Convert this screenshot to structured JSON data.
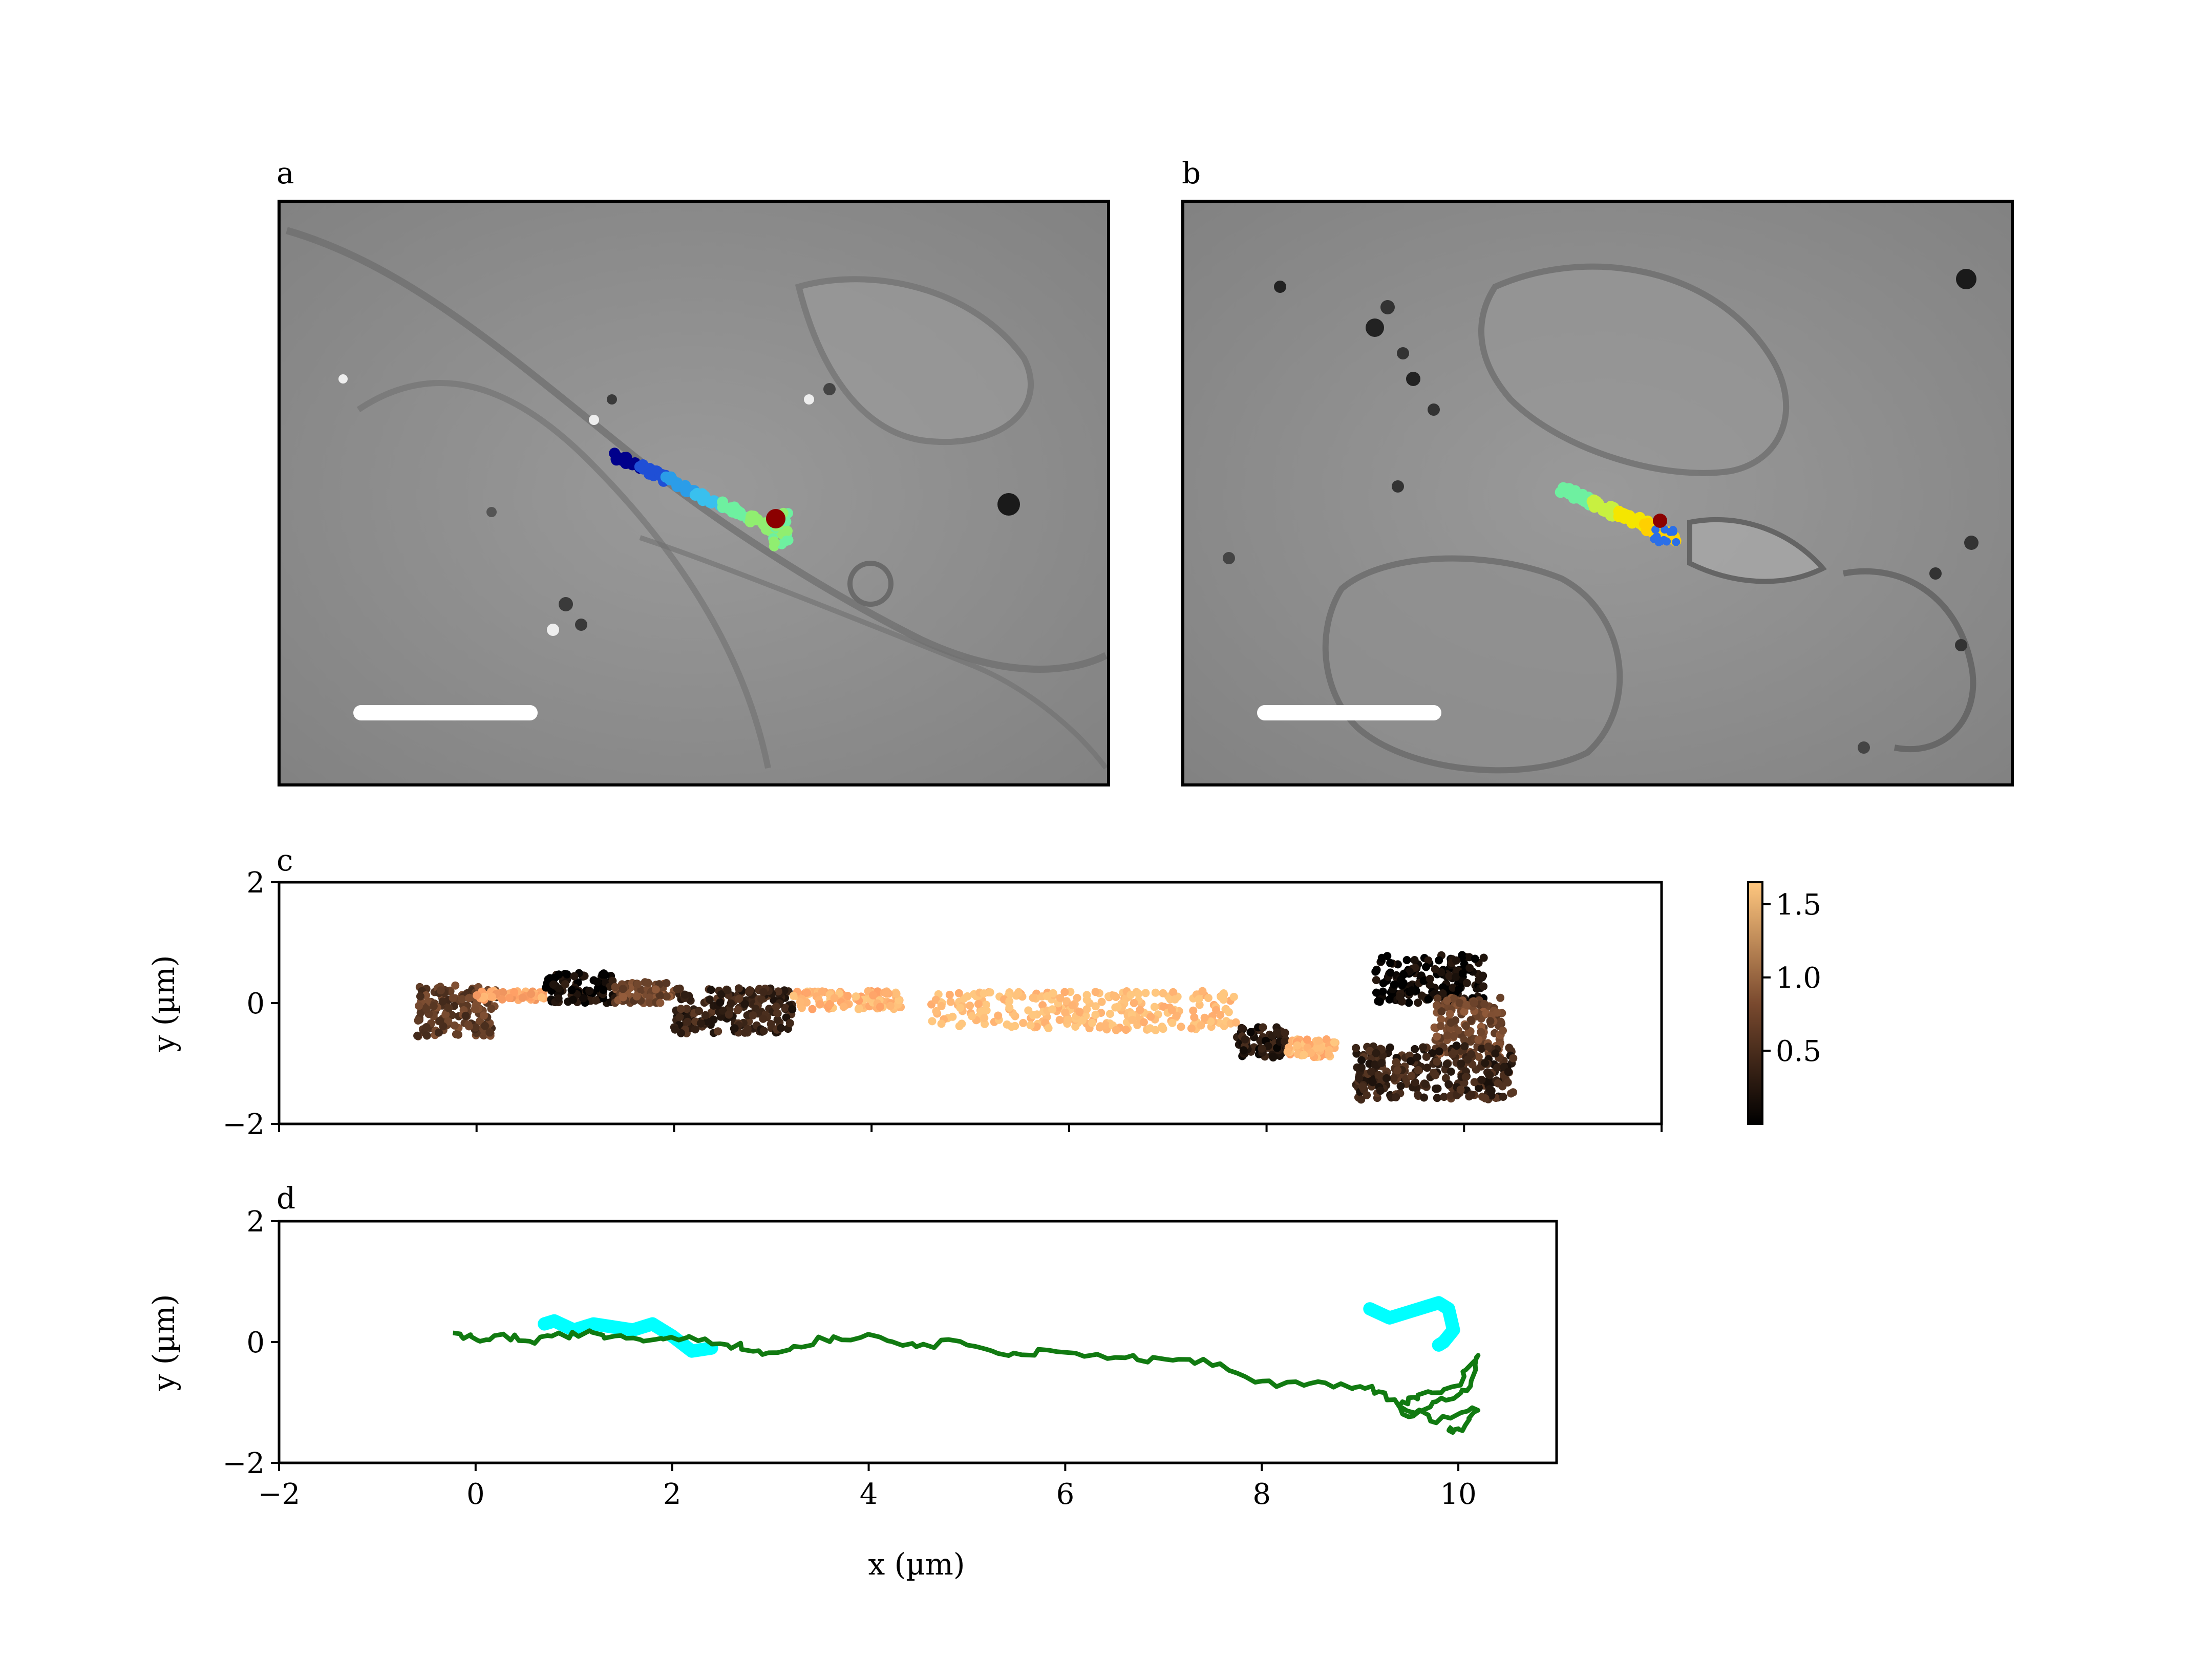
{
  "panels": {
    "a": {
      "label": "a"
    },
    "b": {
      "label": "b"
    },
    "c": {
      "label": "c"
    },
    "d": {
      "label": "d"
    }
  },
  "colors": {
    "micrograph_background": "#8a8a8a",
    "scale_bar": "#ffffff",
    "end_marker": "#8b0000",
    "track_d_fast": "#00ffff",
    "track_d_slow": "#117a11"
  },
  "chart_data": [
    {
      "panel": "a",
      "type": "scatter",
      "description_free": true,
      "colormap": "jet",
      "trajectory_colors": [
        "#00008b",
        "#1f4fd6",
        "#2b9de8",
        "#39c0ee",
        "#6ef0a0",
        "#90ee70"
      ],
      "has_scale_bar": true
    },
    {
      "panel": "b",
      "type": "scatter",
      "colormap": "jet",
      "trajectory_colors": [
        "#6ef0a0",
        "#c8f040",
        "#f5e600",
        "#ffd000",
        "#2b6fe8"
      ],
      "has_scale_bar": true
    },
    {
      "panel": "c",
      "type": "scatter",
      "xlim": [
        -2,
        12
      ],
      "ylim": [
        -2,
        2
      ],
      "xlabel": "",
      "ylabel": "y (µm)",
      "yticks": [
        -2,
        0,
        2
      ],
      "xticks": [
        -2,
        0,
        2,
        4,
        6,
        8,
        10,
        12
      ],
      "colorbar": {
        "colormap": "copper",
        "range": [
          0.0,
          1.65
        ],
        "ticks": [
          0.5,
          1.0,
          1.5
        ],
        "tick_labels": [
          "0.5",
          "1.0",
          "1.5"
        ]
      },
      "segments": [
        {
          "x": [
            -0.6,
            0.2
          ],
          "y": [
            -0.55,
            0.3
          ],
          "speed": 0.5
        },
        {
          "x": [
            0.0,
            0.7
          ],
          "y": [
            0.05,
            0.2
          ],
          "speed": 1.4
        },
        {
          "x": [
            0.7,
            1.4
          ],
          "y": [
            0.0,
            0.5
          ],
          "speed": 0.1
        },
        {
          "x": [
            1.4,
            2.0
          ],
          "y": [
            0.0,
            0.35
          ],
          "speed": 0.6
        },
        {
          "x": [
            2.0,
            3.2
          ],
          "y": [
            -0.5,
            0.25
          ],
          "speed": 0.3
        },
        {
          "x": [
            3.2,
            4.3
          ],
          "y": [
            -0.1,
            0.2
          ],
          "speed": 1.5
        },
        {
          "x": [
            4.6,
            7.7
          ],
          "y": [
            -0.45,
            0.2
          ],
          "speed": 1.6
        },
        {
          "x": [
            7.7,
            8.2
          ],
          "y": [
            -0.9,
            -0.4
          ],
          "speed": 0.2
        },
        {
          "x": [
            8.2,
            8.7
          ],
          "y": [
            -0.9,
            -0.6
          ],
          "speed": 1.5
        },
        {
          "x": [
            9.1,
            10.2
          ],
          "y": [
            0.0,
            0.8
          ],
          "speed": 0.05
        },
        {
          "x": [
            9.7,
            10.4
          ],
          "y": [
            -0.9,
            0.1
          ],
          "speed": 0.6
        },
        {
          "x": [
            8.9,
            10.5
          ],
          "y": [
            -1.6,
            -0.7
          ],
          "speed": 0.3
        }
      ]
    },
    {
      "panel": "d",
      "type": "line",
      "xlim": [
        -2,
        11
      ],
      "ylim": [
        -2,
        2
      ],
      "xlabel": "x (µm)",
      "ylabel": "y (µm)",
      "xticks": [
        -2,
        0,
        2,
        4,
        6,
        8,
        10
      ],
      "xtick_labels": [
        "−2",
        "0",
        "2",
        "4",
        "6",
        "8",
        "10"
      ],
      "yticks": [
        -2,
        0,
        2
      ],
      "ytick_labels": [
        "−2",
        "0",
        "2"
      ],
      "series": [
        {
          "color": "#117a11",
          "x": [
            -0.2,
            0.0,
            0.3,
            0.6,
            1.0,
            1.4,
            1.8,
            2.2,
            2.6,
            3.0,
            3.5,
            4.0,
            4.5,
            5.0,
            5.5,
            6.0,
            6.5,
            7.0,
            7.5,
            8.0,
            8.5,
            8.9,
            9.2,
            9.5,
            9.8,
            10.1,
            10.2,
            10.0,
            9.6,
            9.4,
            9.8,
            10.2,
            10.0,
            9.9
          ],
          "y": [
            0.1,
            0.05,
            0.1,
            0.0,
            0.15,
            0.1,
            0.05,
            0.1,
            -0.05,
            -0.2,
            0.05,
            0.1,
            -0.05,
            0.0,
            -0.2,
            -0.15,
            -0.25,
            -0.3,
            -0.35,
            -0.7,
            -0.65,
            -0.75,
            -0.8,
            -1.2,
            -1.0,
            -0.8,
            -0.2,
            -0.7,
            -0.9,
            -1.05,
            -1.3,
            -1.1,
            -1.5,
            -1.4
          ]
        },
        {
          "color": "#00ffff",
          "segments": [
            {
              "x": [
                0.7,
                0.8,
                1.0,
                1.2,
                1.4,
                1.6,
                1.8,
                2.0,
                2.2,
                2.4
              ],
              "y": [
                0.3,
                0.35,
                0.2,
                0.3,
                0.25,
                0.2,
                0.3,
                0.1,
                -0.15,
                -0.1
              ]
            },
            {
              "x": [
                9.1,
                9.3,
                9.5,
                9.7,
                9.8,
                9.9,
                9.95,
                9.85,
                9.8
              ],
              "y": [
                0.55,
                0.4,
                0.5,
                0.6,
                0.65,
                0.55,
                0.2,
                0.0,
                -0.05
              ]
            }
          ]
        }
      ]
    }
  ]
}
